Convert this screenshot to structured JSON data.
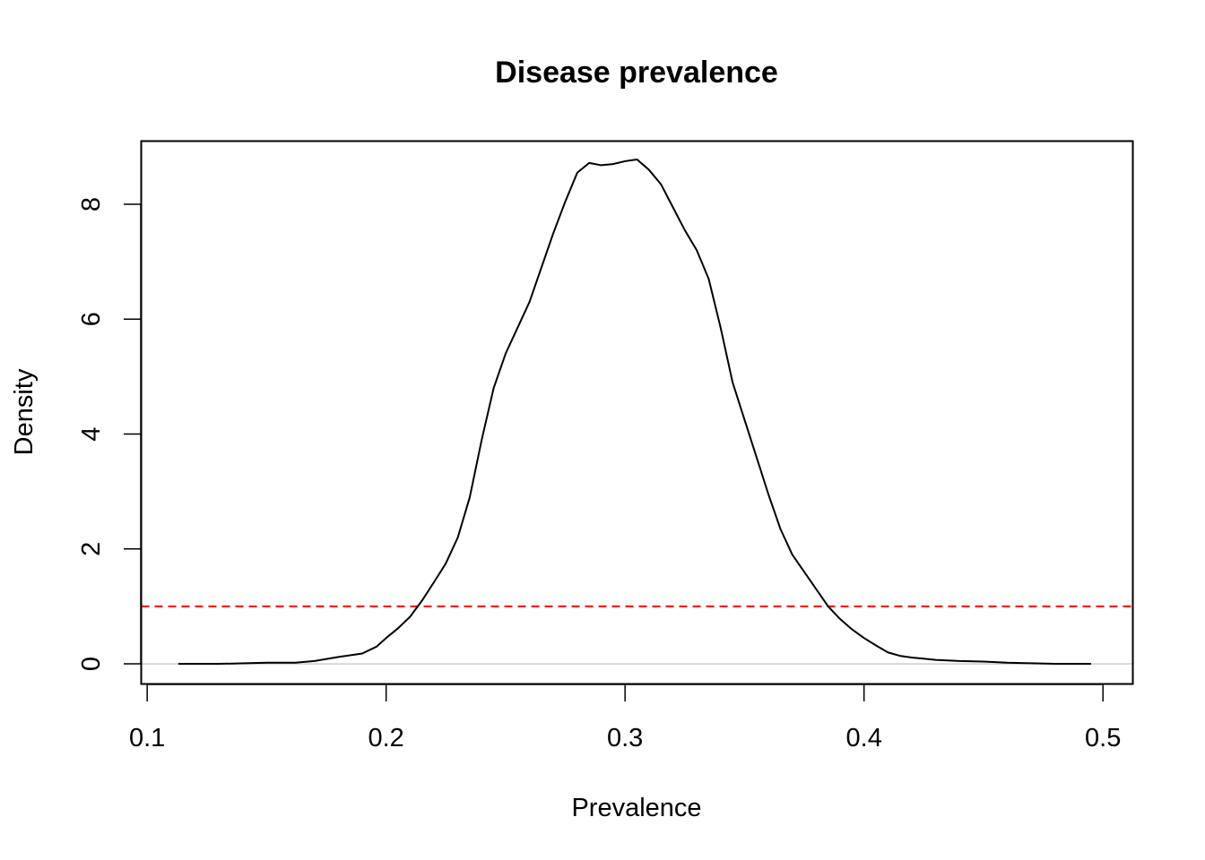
{
  "chart_data": {
    "type": "line",
    "title": "Disease prevalence",
    "xlabel": "Prevalence",
    "ylabel": "Density",
    "xlim": [
      0.0975,
      0.5125
    ],
    "ylim": [
      -0.35,
      9.1
    ],
    "x_ticks": [
      0.1,
      0.2,
      0.3,
      0.4,
      0.5
    ],
    "x_tick_labels": [
      "0.1",
      "0.2",
      "0.3",
      "0.4",
      "0.5"
    ],
    "y_ticks": [
      0,
      2,
      4,
      6,
      8
    ],
    "y_tick_labels": [
      "0",
      "2",
      "4",
      "6",
      "8"
    ],
    "grid": false,
    "series": [
      {
        "color": "#000000",
        "line_style": "solid",
        "x": [
          0.113,
          0.13,
          0.15,
          0.162,
          0.17,
          0.18,
          0.19,
          0.196,
          0.2,
          0.205,
          0.21,
          0.215,
          0.22,
          0.225,
          0.23,
          0.235,
          0.24,
          0.245,
          0.25,
          0.255,
          0.26,
          0.265,
          0.27,
          0.275,
          0.28,
          0.285,
          0.29,
          0.295,
          0.3,
          0.305,
          0.31,
          0.315,
          0.32,
          0.325,
          0.33,
          0.335,
          0.34,
          0.345,
          0.35,
          0.355,
          0.36,
          0.365,
          0.37,
          0.375,
          0.38,
          0.385,
          0.39,
          0.395,
          0.4,
          0.405,
          0.41,
          0.415,
          0.42,
          0.425,
          0.43,
          0.44,
          0.45,
          0.46,
          0.47,
          0.48,
          0.49,
          0.495
        ],
        "y": [
          0.0,
          0.0,
          0.02,
          0.02,
          0.05,
          0.12,
          0.18,
          0.3,
          0.45,
          0.62,
          0.82,
          1.1,
          1.42,
          1.75,
          2.2,
          2.9,
          3.9,
          4.8,
          5.4,
          5.85,
          6.3,
          6.9,
          7.5,
          8.05,
          8.55,
          8.72,
          8.68,
          8.7,
          8.75,
          8.78,
          8.6,
          8.35,
          7.95,
          7.55,
          7.2,
          6.7,
          5.85,
          4.9,
          4.25,
          3.6,
          2.95,
          2.35,
          1.9,
          1.6,
          1.3,
          1.0,
          0.78,
          0.6,
          0.45,
          0.32,
          0.2,
          0.14,
          0.11,
          0.09,
          0.07,
          0.05,
          0.04,
          0.02,
          0.01,
          0.0,
          0.0,
          0.0
        ]
      },
      {
        "color": "#ff0000",
        "line_style": "dashed",
        "x": [
          0.0975,
          0.5125
        ],
        "y": [
          1,
          1
        ]
      },
      {
        "color": "#bebebe",
        "line_style": "solid",
        "x": [
          0.0975,
          0.5125
        ],
        "y": [
          0,
          0
        ]
      }
    ]
  }
}
